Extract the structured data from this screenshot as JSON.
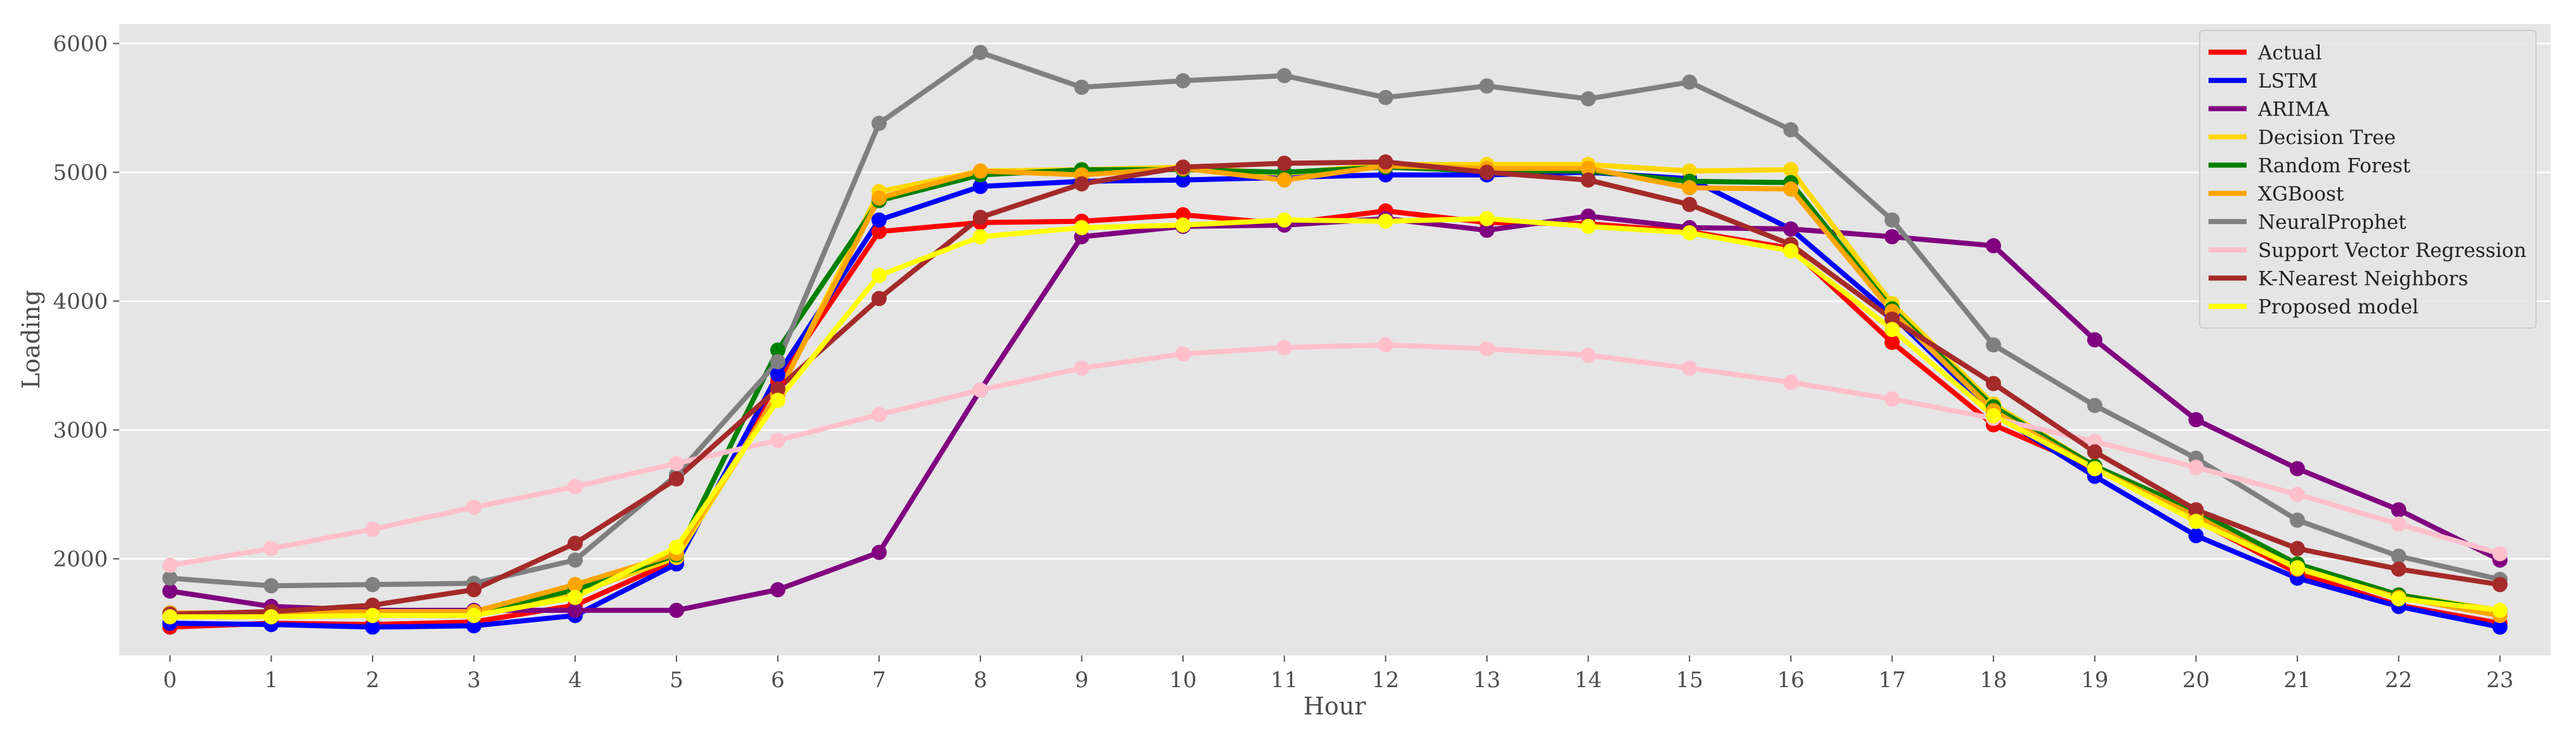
{
  "chart_data": {
    "type": "line",
    "title": "",
    "xlabel": "Hour",
    "ylabel": "Loading",
    "x": [
      0,
      1,
      2,
      3,
      4,
      5,
      6,
      7,
      8,
      9,
      10,
      11,
      12,
      13,
      14,
      15,
      16,
      17,
      18,
      19,
      20,
      21,
      22,
      23
    ],
    "x_ticks": [
      "0",
      "1",
      "2",
      "3",
      "4",
      "5",
      "6",
      "7",
      "8",
      "9",
      "10",
      "11",
      "12",
      "13",
      "14",
      "15",
      "16",
      "17",
      "18",
      "19",
      "20",
      "21",
      "22",
      "23"
    ],
    "xlim": [
      -0.5,
      23.5
    ],
    "ylim": [
      1250,
      6150
    ],
    "y_ticks": [
      2000,
      3000,
      4000,
      5000,
      6000
    ],
    "y_tick_labels": [
      "2000",
      "3000",
      "4000",
      "5000",
      "6000"
    ],
    "grid": true,
    "legend_position": "top-right",
    "series": [
      {
        "name": "Actual",
        "color": "#ff0000",
        "values": [
          1470,
          1500,
          1490,
          1510,
          1640,
          1990,
          3380,
          4540,
          4610,
          4620,
          4670,
          4600,
          4700,
          4610,
          4600,
          4540,
          4410,
          3680,
          3040,
          2700,
          2300,
          1890,
          1640,
          1500
        ]
      },
      {
        "name": "LSTM",
        "color": "#0000ff",
        "values": [
          1500,
          1490,
          1470,
          1480,
          1560,
          1960,
          3430,
          4630,
          4890,
          4930,
          4940,
          4960,
          4980,
          4980,
          5000,
          4950,
          4560,
          3890,
          3130,
          2640,
          2180,
          1850,
          1630,
          1470
        ]
      },
      {
        "name": "ARIMA",
        "color": "#800080",
        "values": [
          1750,
          1630,
          1600,
          1600,
          1600,
          1600,
          1760,
          2050,
          3310,
          4500,
          4580,
          4590,
          4640,
          4550,
          4660,
          4570,
          4560,
          4500,
          4430,
          3700,
          3080,
          2700,
          2380,
          1990
        ]
      },
      {
        "name": "Decision Tree",
        "color": "#ffd700",
        "values": [
          1560,
          1560,
          1570,
          1570,
          1730,
          2010,
          3270,
          4850,
          5010,
          5020,
          5040,
          4990,
          5060,
          5060,
          5060,
          5010,
          5020,
          3980,
          3200,
          2720,
          2370,
          1960,
          1720,
          1600
        ]
      },
      {
        "name": "Random Forest",
        "color": "#008000",
        "values": [
          1580,
          1580,
          1580,
          1580,
          1760,
          2030,
          3620,
          4780,
          4980,
          5020,
          5020,
          5000,
          5040,
          5010,
          5010,
          4930,
          4920,
          3940,
          3180,
          2720,
          2370,
          1960,
          1720,
          1590
        ]
      },
      {
        "name": "XGBoost",
        "color": "#ffa500",
        "values": [
          1580,
          1580,
          1590,
          1590,
          1800,
          2040,
          3280,
          4800,
          5010,
          4980,
          5030,
          4940,
          5050,
          5030,
          5030,
          4880,
          4870,
          3920,
          3150,
          2700,
          2330,
          1920,
          1700,
          1560
        ]
      },
      {
        "name": "NeuralProphet",
        "color": "#808080",
        "values": [
          1850,
          1790,
          1800,
          1810,
          1990,
          2650,
          3530,
          5380,
          5930,
          5660,
          5710,
          5750,
          5580,
          5670,
          5570,
          5700,
          5330,
          4630,
          3660,
          3190,
          2780,
          2300,
          2020,
          1840
        ]
      },
      {
        "name": "Support Vector Regression",
        "color": "#ffc0cb",
        "values": [
          1950,
          2080,
          2230,
          2400,
          2560,
          2740,
          2920,
          3120,
          3310,
          3480,
          3590,
          3640,
          3660,
          3630,
          3580,
          3480,
          3370,
          3240,
          3090,
          2910,
          2710,
          2500,
          2270,
          2040
        ]
      },
      {
        "name": "K-Nearest Neighbors",
        "color": "#a52a2a",
        "values": [
          1570,
          1590,
          1640,
          1760,
          2120,
          2620,
          3320,
          4020,
          4650,
          4910,
          5040,
          5070,
          5080,
          5000,
          4940,
          4750,
          4440,
          3860,
          3360,
          2830,
          2380,
          2080,
          1920,
          1800
        ]
      },
      {
        "name": "Proposed model",
        "color": "#ffff00",
        "values": [
          1550,
          1550,
          1560,
          1560,
          1700,
          2090,
          3230,
          4200,
          4500,
          4570,
          4590,
          4630,
          4620,
          4640,
          4580,
          4530,
          4390,
          3780,
          3110,
          2700,
          2290,
          1930,
          1690,
          1600
        ]
      }
    ]
  }
}
